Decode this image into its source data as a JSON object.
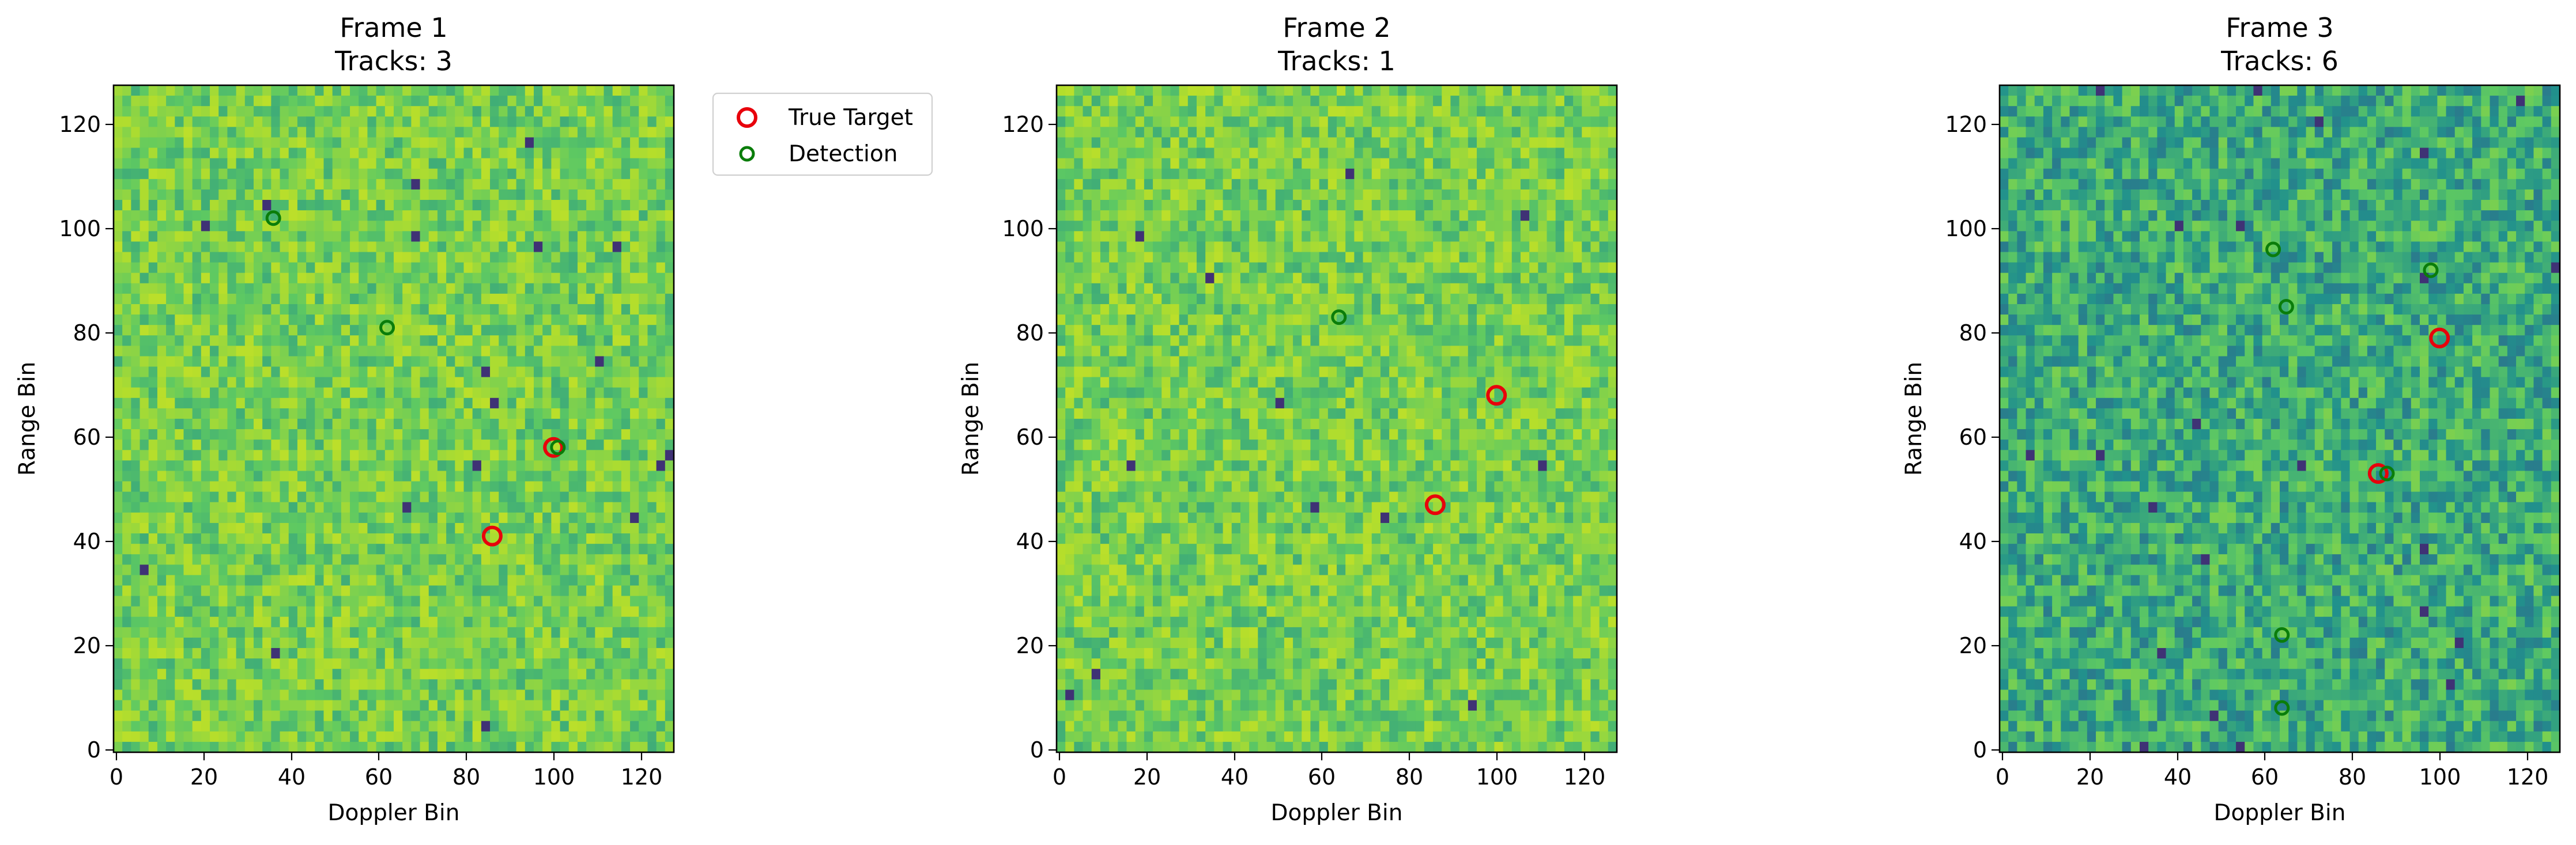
{
  "chart_data": [
    {
      "type": "scatter",
      "plot_kind": "heatmap with scatter overlay",
      "title_line1": "Frame 1",
      "title_line2": "Tracks: 3",
      "xlabel": "Doppler Bin",
      "ylabel": "Range Bin",
      "xlim": [
        -0.5,
        127.5
      ],
      "ylim": [
        -0.5,
        127.5
      ],
      "xticks": [
        0,
        20,
        40,
        60,
        80,
        100,
        120
      ],
      "yticks": [
        0,
        20,
        40,
        60,
        80,
        100,
        120
      ],
      "heatmap_tone": "bright",
      "series": [
        {
          "name": "True Target",
          "points": [
            [
              100,
              58
            ],
            [
              86,
              41
            ]
          ]
        },
        {
          "name": "Detection",
          "points": [
            [
              36,
              102
            ],
            [
              62,
              81
            ],
            [
              101,
              58
            ]
          ]
        }
      ],
      "legend": [
        "True Target",
        "Detection"
      ]
    },
    {
      "type": "scatter",
      "plot_kind": "heatmap with scatter overlay",
      "title_line1": "Frame 2",
      "title_line2": "Tracks: 1",
      "xlabel": "Doppler Bin",
      "ylabel": "Range Bin",
      "xlim": [
        -0.5,
        127.5
      ],
      "ylim": [
        -0.5,
        127.5
      ],
      "xticks": [
        0,
        20,
        40,
        60,
        80,
        100,
        120
      ],
      "yticks": [
        0,
        20,
        40,
        60,
        80,
        100,
        120
      ],
      "heatmap_tone": "bright",
      "series": [
        {
          "name": "True Target",
          "points": [
            [
              100,
              68
            ],
            [
              86,
              47
            ]
          ]
        },
        {
          "name": "Detection",
          "points": [
            [
              64,
              83
            ]
          ]
        }
      ]
    },
    {
      "type": "scatter",
      "plot_kind": "heatmap with scatter overlay",
      "title_line1": "Frame 3",
      "title_line2": "Tracks: 6",
      "xlabel": "Doppler Bin",
      "ylabel": "Range Bin",
      "xlim": [
        -0.5,
        127.5
      ],
      "ylim": [
        -0.5,
        127.5
      ],
      "xticks": [
        0,
        20,
        40,
        60,
        80,
        100,
        120
      ],
      "yticks": [
        0,
        20,
        40,
        60,
        80,
        100,
        120
      ],
      "heatmap_tone": "dark",
      "series": [
        {
          "name": "True Target",
          "points": [
            [
              100,
              79
            ],
            [
              86,
              53
            ]
          ]
        },
        {
          "name": "Detection",
          "points": [
            [
              62,
              96
            ],
            [
              98,
              92
            ],
            [
              65,
              85
            ],
            [
              88,
              53
            ],
            [
              64,
              22
            ],
            [
              64,
              8
            ]
          ]
        }
      ]
    }
  ],
  "colors": {
    "true_target": "#e8000b",
    "detection": "#0a7d0a",
    "colormap": [
      "#440154",
      "#3b528b",
      "#21918c",
      "#5ec962",
      "#b5de2b",
      "#fde725"
    ]
  }
}
